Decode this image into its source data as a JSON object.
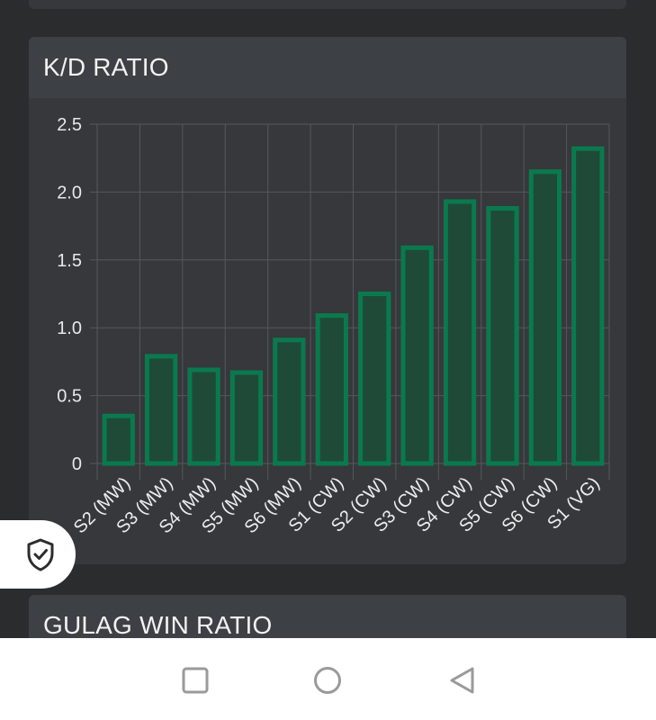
{
  "cards": {
    "kd": {
      "title": "K/D RATIO"
    },
    "gulag": {
      "title": "GULAG WIN RATIO"
    }
  },
  "chart_data": {
    "type": "bar",
    "title": "K/D RATIO",
    "categories": [
      "S2 (MW)",
      "S3 (MW)",
      "S4 (MW)",
      "S5 (MW)",
      "S6 (MW)",
      "S1 (CW)",
      "S2 (CW)",
      "S3 (CW)",
      "S4 (CW)",
      "S5 (CW)",
      "S6 (CW)",
      "S1 (VG)"
    ],
    "values": [
      0.35,
      0.79,
      0.69,
      0.67,
      0.91,
      1.09,
      1.25,
      1.59,
      1.93,
      1.88,
      2.15,
      2.32
    ],
    "ylim": [
      0,
      2.5
    ],
    "yticks": [
      "0",
      "0.5",
      "1.0",
      "1.5",
      "2.0",
      "2.5"
    ],
    "grid": true,
    "colors": {
      "bar_fill": "#1f4a38",
      "bar_stroke": "#0a7a4e",
      "grid": "#55585c"
    }
  },
  "icons": {
    "shield": "shield-check-icon",
    "nav": [
      "square-icon",
      "circle-icon",
      "triangle-back-icon"
    ]
  }
}
